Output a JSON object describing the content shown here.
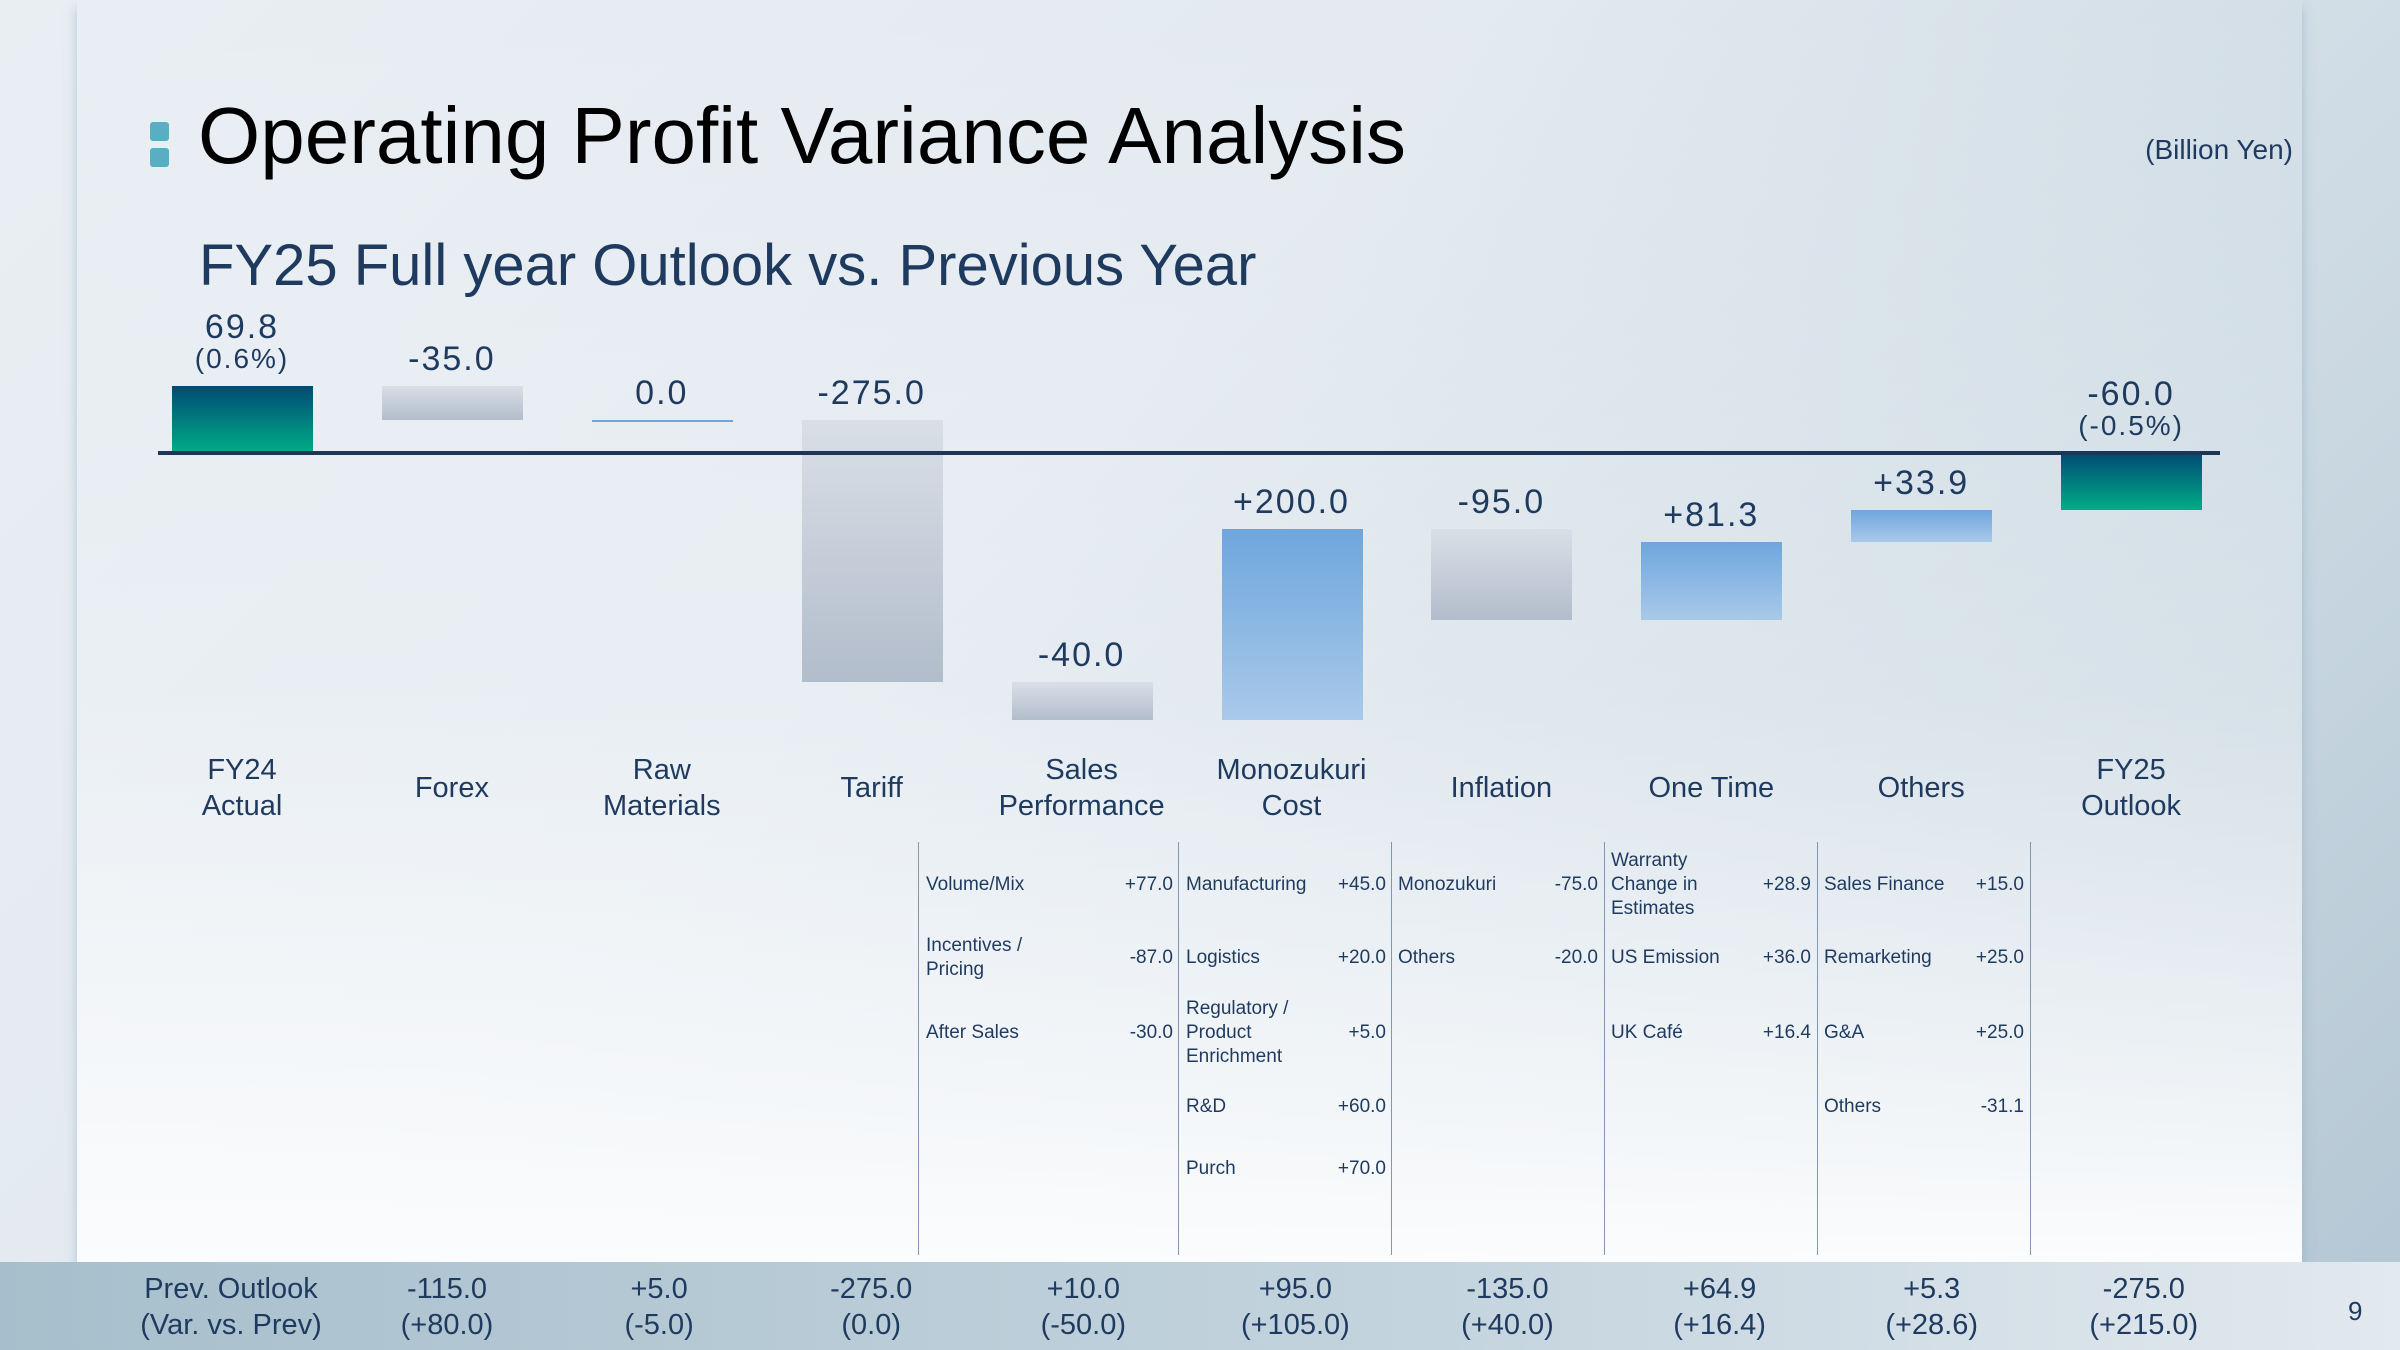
{
  "header": {
    "title": "Operating Profit Variance Analysis",
    "unit": "(Billion Yen)",
    "subtitle": "FY25 Full year Outlook vs. Previous Year"
  },
  "page_number": "9",
  "colors": {
    "total_top": "#004a73",
    "total_bottom": "#00ad87",
    "neg_top": "#d9dfe7",
    "neg_bottom": "#b2bdcb",
    "pos_top": "#6ea6dd",
    "pos_bottom": "#a9c9e9",
    "axis": "#1e3556"
  },
  "chart_data": {
    "type": "waterfall",
    "title": "FY25 Full year Outlook vs. Previous Year",
    "unit": "Billion Yen",
    "categories": [
      [
        "FY24",
        "Actual"
      ],
      [
        "Forex"
      ],
      [
        "Raw",
        "Materials"
      ],
      [
        "Tariff"
      ],
      [
        "Sales",
        "Performance"
      ],
      [
        "Monozukuri",
        "Cost"
      ],
      [
        "Inflation"
      ],
      [
        "One Time"
      ],
      [
        "Others"
      ],
      [
        "FY25",
        "Outlook"
      ]
    ],
    "kinds": [
      "total",
      "delta",
      "delta",
      "delta",
      "delta",
      "delta",
      "delta",
      "delta",
      "delta",
      "total"
    ],
    "values": [
      69.8,
      -35.0,
      0.0,
      -275.0,
      -40.0,
      200.0,
      -95.0,
      81.3,
      33.9,
      -60.0
    ],
    "labels": [
      [
        "69.8",
        "(0.6%)"
      ],
      [
        "-35.0"
      ],
      [
        "0.0"
      ],
      [
        "-275.0"
      ],
      [
        "-40.0"
      ],
      [
        "+200.0"
      ],
      [
        "-95.0"
      ],
      [
        "+81.3"
      ],
      [
        "+33.9"
      ],
      [
        "-60.0",
        "(-0.5%)"
      ]
    ]
  },
  "details": [
    {
      "col": 4,
      "items": [
        {
          "name": "Volume/Mix",
          "value": "+77.0"
        },
        {
          "name": "Incentives / Pricing",
          "value": "-87.0"
        },
        {
          "name": "After Sales",
          "value": "-30.0"
        }
      ]
    },
    {
      "col": 5,
      "items": [
        {
          "name": "Manufacturing",
          "value": "+45.0"
        },
        {
          "name": "Logistics",
          "value": "+20.0"
        },
        {
          "name": "Regulatory / Product Enrichment",
          "value": "+5.0"
        },
        {
          "name": "R&D",
          "value": "+60.0"
        },
        {
          "name": "Purch",
          "value": "+70.0"
        }
      ]
    },
    {
      "col": 6,
      "items": [
        {
          "name": "Monozukuri",
          "value": "-75.0"
        },
        {
          "name": "Others",
          "value": "-20.0"
        }
      ]
    },
    {
      "col": 7,
      "items": [
        {
          "name": "Warranty Change in Estimates",
          "value": "+28.9"
        },
        {
          "name": "US Emission",
          "value": "+36.0"
        },
        {
          "name": "UK Café",
          "value": "+16.4"
        }
      ]
    },
    {
      "col": 8,
      "items": [
        {
          "name": "Sales Finance",
          "value": "+15.0"
        },
        {
          "name": "Remarketing",
          "value": "+25.0"
        },
        {
          "name": "G&A",
          "value": "+25.0"
        },
        {
          "name": "Others",
          "value": "-31.1"
        }
      ]
    }
  ],
  "prev_outlook": {
    "label": [
      "Prev. Outlook",
      "(Var. vs. Prev)"
    ],
    "values": [
      [
        "-115.0",
        "(+80.0)"
      ],
      [
        "+5.0",
        "(-5.0)"
      ],
      [
        "-275.0",
        "(0.0)"
      ],
      [
        "+10.0",
        "(-50.0)"
      ],
      [
        "+95.0",
        "(+105.0)"
      ],
      [
        "-135.0",
        "(+40.0)"
      ],
      [
        "+64.9",
        "(+16.4)"
      ],
      [
        "+5.3",
        "(+28.6)"
      ],
      [
        "-275.0",
        "(+215.0)"
      ]
    ]
  }
}
